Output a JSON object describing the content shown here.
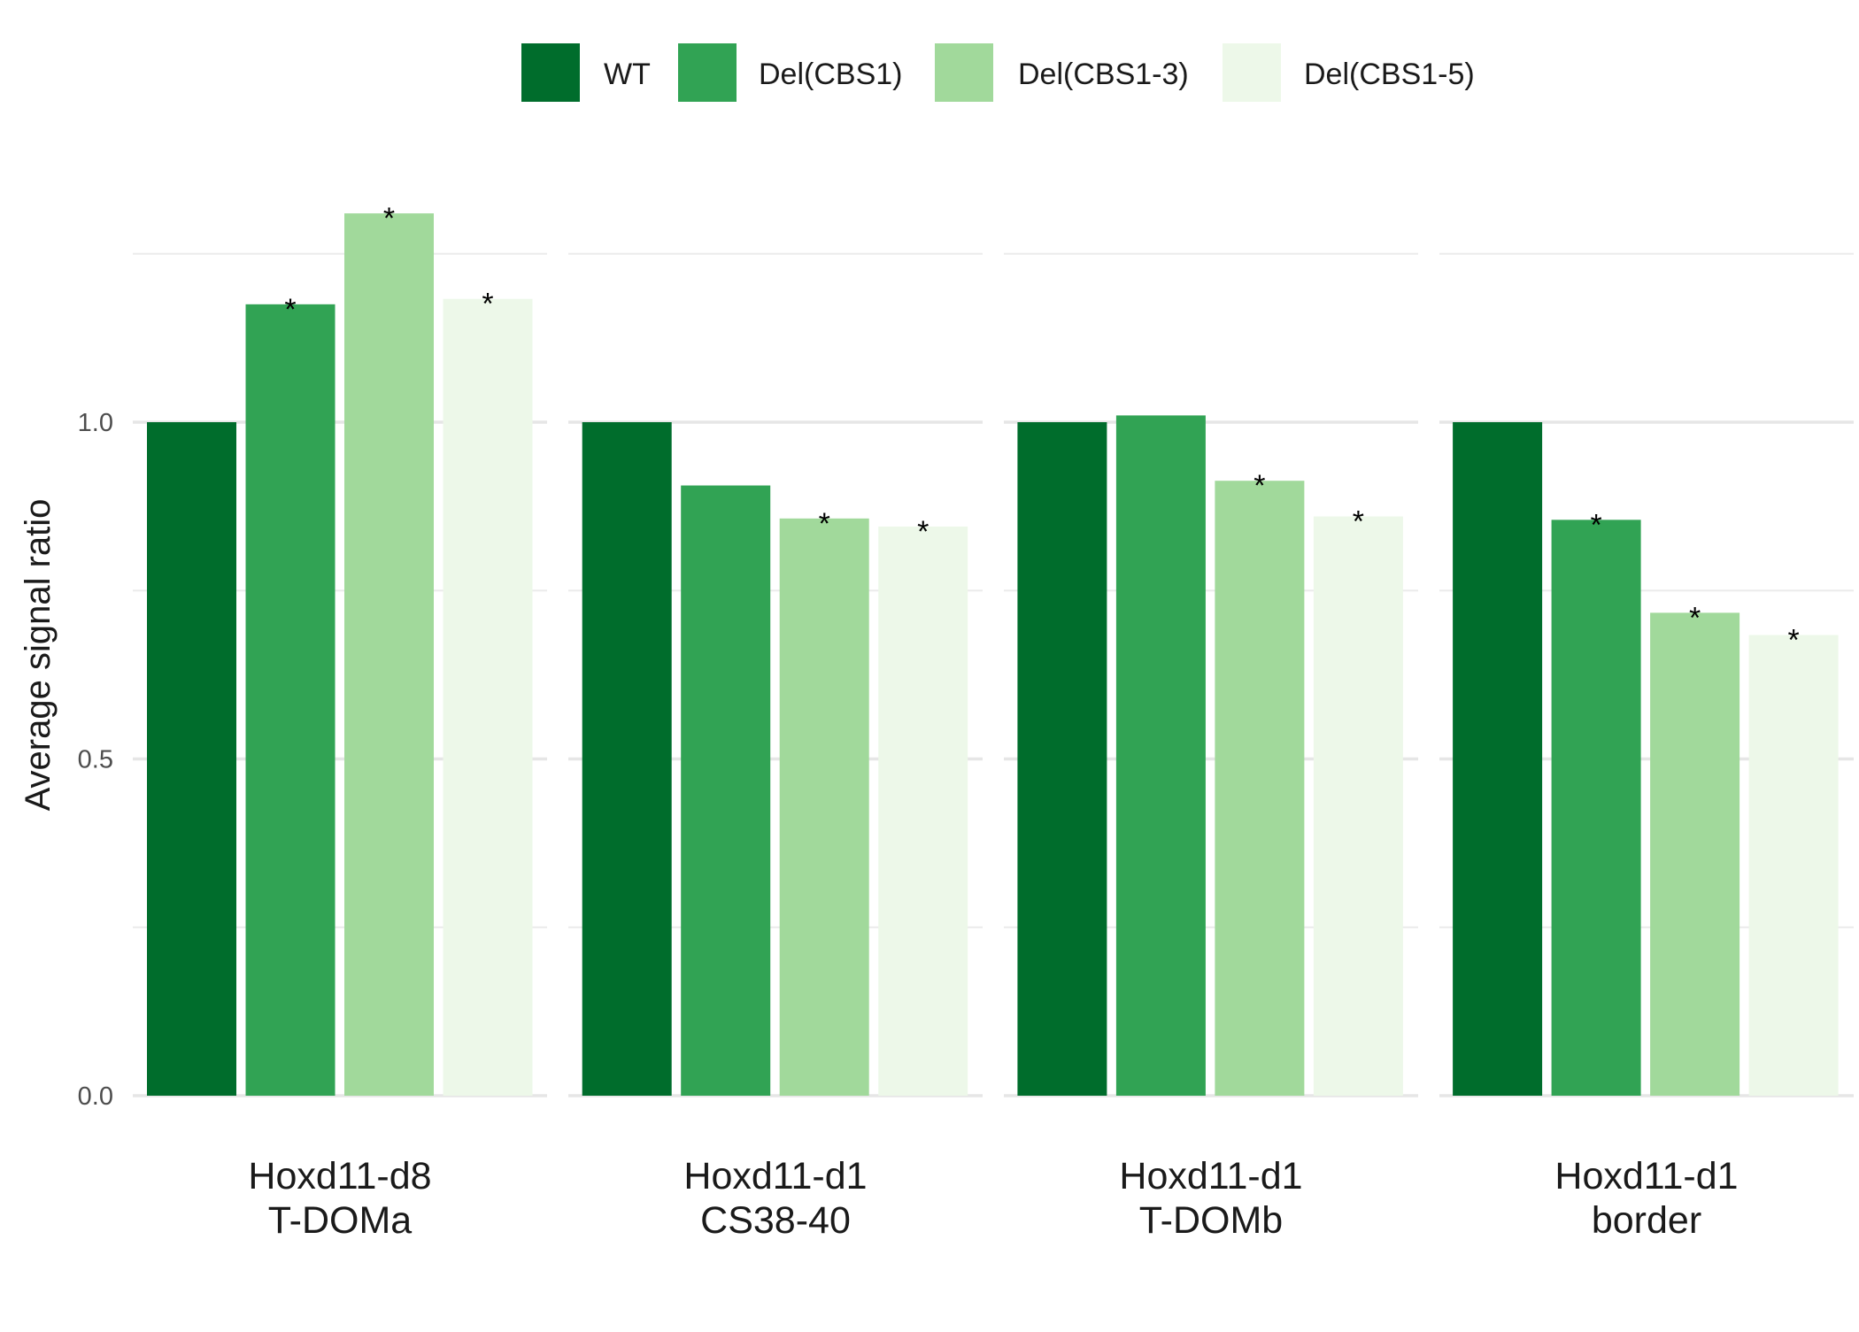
{
  "chart_data": {
    "type": "bar",
    "ylabel": "Average signal ratio",
    "ylim": [
      0,
      1.27
    ],
    "yticks": [
      "0.0",
      "0.5",
      "1.0"
    ],
    "yticks_values": [
      0,
      0.5,
      1.0
    ],
    "grid": true,
    "legend_position": "top",
    "series": [
      {
        "name": "WT",
        "color": "#006d2c"
      },
      {
        "name": "Del(CBS1)",
        "color": "#31a354"
      },
      {
        "name": "Del(CBS1-3)",
        "color": "#a1d99b"
      },
      {
        "name": "Del(CBS1-5)",
        "color": "#edf8e9"
      }
    ],
    "facets": [
      {
        "label_lines": [
          "Hoxd11-d8",
          "T-DOMa"
        ],
        "values": [
          1.0,
          1.175,
          1.31,
          1.183
        ],
        "significant": [
          false,
          true,
          true,
          true
        ]
      },
      {
        "label_lines": [
          "Hoxd11-d1",
          "CS38-40"
        ],
        "values": [
          1.0,
          0.906,
          0.857,
          0.845
        ],
        "significant": [
          false,
          false,
          true,
          true
        ]
      },
      {
        "label_lines": [
          "Hoxd11-d1",
          "T-DOMb"
        ],
        "values": [
          1.0,
          1.01,
          0.913,
          0.86
        ],
        "significant": [
          false,
          false,
          true,
          true
        ]
      },
      {
        "label_lines": [
          "Hoxd11-d1",
          "border"
        ],
        "values": [
          1.0,
          0.855,
          0.717,
          0.684
        ],
        "significant": [
          false,
          true,
          true,
          true
        ]
      }
    ],
    "significance_marker": "*"
  }
}
